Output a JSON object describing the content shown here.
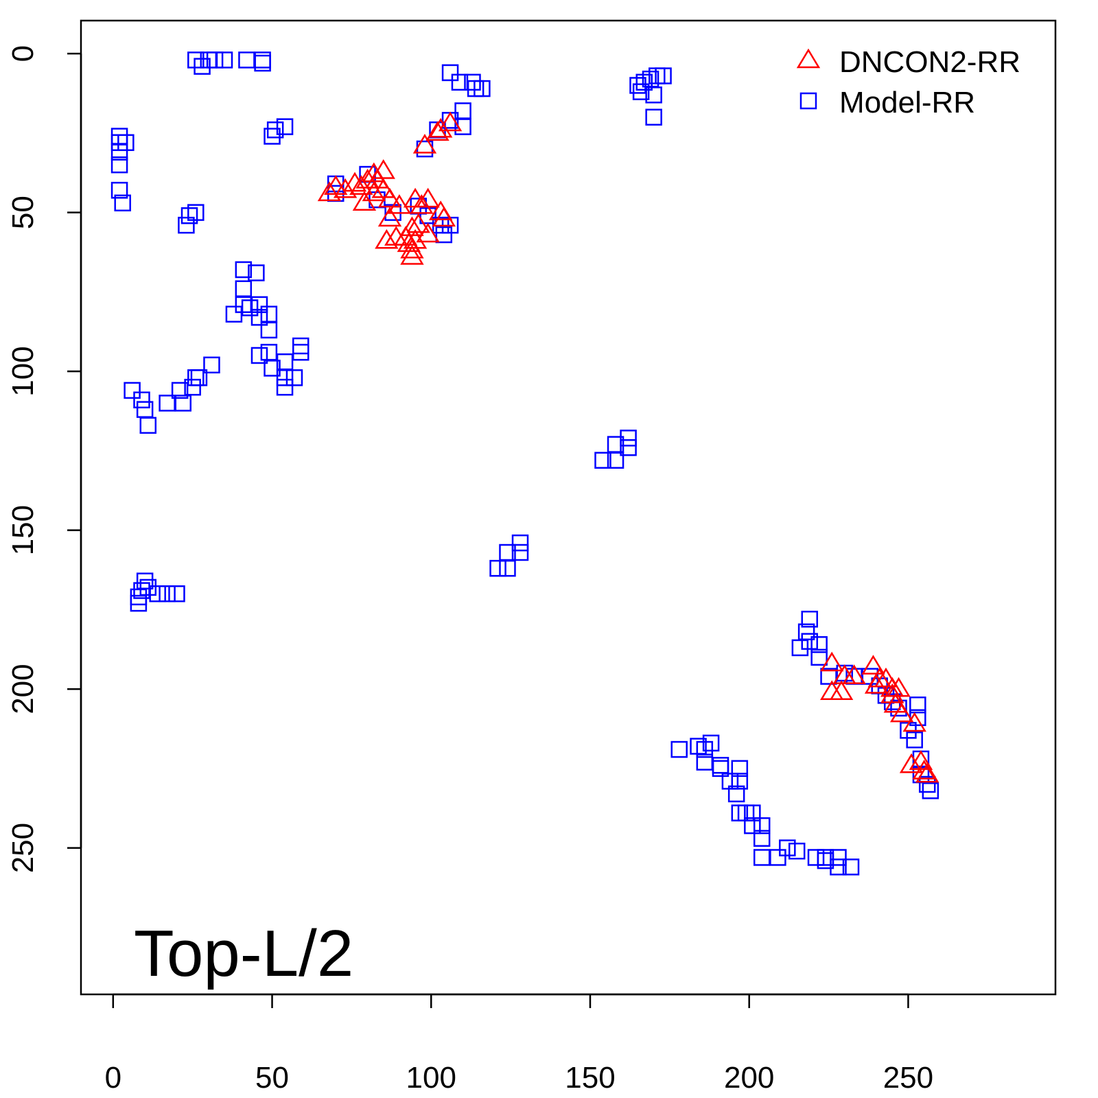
{
  "chart_data": {
    "type": "scatter",
    "title": "",
    "xlabel": "",
    "ylabel": "",
    "xlim": [
      -10.1,
      296.3
    ],
    "ylim": [
      -10.4,
      296.1
    ],
    "y_inverted": true,
    "grid": false,
    "xticks": [
      0,
      50,
      100,
      150,
      200,
      250
    ],
    "yticks": [
      0,
      50,
      100,
      150,
      200,
      250
    ],
    "xtick_labels": [
      "0",
      "50",
      "100",
      "150",
      "200",
      "250"
    ],
    "ytick_labels": [
      "0",
      "50",
      "100",
      "150",
      "200",
      "250"
    ],
    "annotation": "Top-L/2",
    "legend_position": "top-right",
    "legend": [
      "DNCON2-RR",
      "Model-RR"
    ],
    "series": [
      {
        "name": "DNCON2-RR",
        "marker": "triangle",
        "color": "#ff0000",
        "points": [
          [
            98,
            29
          ],
          [
            102,
            25
          ],
          [
            103,
            24
          ],
          [
            106,
            22
          ],
          [
            68,
            44
          ],
          [
            70,
            42
          ],
          [
            73,
            43
          ],
          [
            76,
            41
          ],
          [
            78,
            42
          ],
          [
            80,
            40
          ],
          [
            82,
            38
          ],
          [
            83,
            40
          ],
          [
            85,
            37
          ],
          [
            79,
            47
          ],
          [
            82,
            44
          ],
          [
            85,
            43
          ],
          [
            87,
            46
          ],
          [
            87,
            52
          ],
          [
            86,
            59
          ],
          [
            89,
            58
          ],
          [
            92,
            58
          ],
          [
            94,
            62
          ],
          [
            94,
            64
          ],
          [
            95,
            46
          ],
          [
            97,
            48
          ],
          [
            99,
            46
          ],
          [
            96,
            54
          ],
          [
            99,
            57
          ],
          [
            103,
            50
          ],
          [
            104,
            52
          ],
          [
            94,
            55
          ],
          [
            93,
            60
          ],
          [
            95,
            59
          ],
          [
            90,
            48
          ],
          [
            226,
            192
          ],
          [
            226,
            201
          ],
          [
            229,
            201
          ],
          [
            230,
            196
          ],
          [
            233,
            196
          ],
          [
            239,
            193
          ],
          [
            240,
            199
          ],
          [
            241,
            197
          ],
          [
            243,
            197
          ],
          [
            245,
            200
          ],
          [
            245,
            202
          ],
          [
            247,
            200
          ],
          [
            246,
            205
          ],
          [
            248,
            208
          ],
          [
            252,
            211
          ],
          [
            251,
            224
          ],
          [
            254,
            223
          ],
          [
            255,
            226
          ],
          [
            256,
            227
          ]
        ]
      },
      {
        "name": "Model-RR",
        "marker": "square",
        "color": "#0000ff",
        "points": [
          [
            26,
            2
          ],
          [
            28,
            4
          ],
          [
            30,
            2
          ],
          [
            32,
            2
          ],
          [
            35,
            2
          ],
          [
            42,
            2
          ],
          [
            47,
            2
          ],
          [
            47,
            3
          ],
          [
            2,
            26
          ],
          [
            4,
            28
          ],
          [
            2,
            28
          ],
          [
            2,
            31
          ],
          [
            2,
            35
          ],
          [
            2,
            43
          ],
          [
            3,
            47
          ],
          [
            50,
            26
          ],
          [
            51,
            24
          ],
          [
            54,
            23
          ],
          [
            23,
            54
          ],
          [
            26,
            50
          ],
          [
            24,
            51
          ],
          [
            106,
            6
          ],
          [
            109,
            9
          ],
          [
            113,
            9
          ],
          [
            114,
            11
          ],
          [
            116,
            11
          ],
          [
            110,
            18
          ],
          [
            110,
            23
          ],
          [
            106,
            21
          ],
          [
            102,
            24
          ],
          [
            98,
            30
          ],
          [
            165,
            10
          ],
          [
            167,
            9
          ],
          [
            169,
            8
          ],
          [
            171,
            7
          ],
          [
            173,
            7
          ],
          [
            170,
            13
          ],
          [
            170,
            20
          ],
          [
            166,
            12
          ],
          [
            41,
            68
          ],
          [
            45,
            69
          ],
          [
            41,
            74
          ],
          [
            41,
            79
          ],
          [
            38,
            82
          ],
          [
            43,
            80
          ],
          [
            46,
            79
          ],
          [
            46,
            83
          ],
          [
            49,
            82
          ],
          [
            49,
            87
          ],
          [
            46,
            95
          ],
          [
            49,
            94
          ],
          [
            50,
            99
          ],
          [
            54,
            97
          ],
          [
            54,
            102
          ],
          [
            54,
            105
          ],
          [
            57,
            102
          ],
          [
            59,
            92
          ],
          [
            59,
            94
          ],
          [
            6,
            106
          ],
          [
            9,
            109
          ],
          [
            10,
            112
          ],
          [
            11,
            117
          ],
          [
            17,
            110
          ],
          [
            21,
            106
          ],
          [
            22,
            110
          ],
          [
            25,
            105
          ],
          [
            26,
            102
          ],
          [
            27,
            102
          ],
          [
            31,
            98
          ],
          [
            8,
            173
          ],
          [
            9,
            169
          ],
          [
            10,
            166
          ],
          [
            11,
            168
          ],
          [
            14,
            170
          ],
          [
            17,
            170
          ],
          [
            20,
            170
          ],
          [
            8,
            171
          ],
          [
            154,
            128
          ],
          [
            158,
            128
          ],
          [
            158,
            123
          ],
          [
            162,
            121
          ],
          [
            162,
            124
          ],
          [
            121,
            162
          ],
          [
            124,
            162
          ],
          [
            124,
            157
          ],
          [
            128,
            157
          ],
          [
            128,
            154
          ],
          [
            219,
            178
          ],
          [
            218,
            182
          ],
          [
            216,
            187
          ],
          [
            219,
            185
          ],
          [
            222,
            186
          ],
          [
            222,
            190
          ],
          [
            225,
            196
          ],
          [
            230,
            195
          ],
          [
            233,
            196
          ],
          [
            238,
            196
          ],
          [
            241,
            199
          ],
          [
            243,
            202
          ],
          [
            245,
            204
          ],
          [
            247,
            206
          ],
          [
            250,
            213
          ],
          [
            252,
            216
          ],
          [
            253,
            205
          ],
          [
            253,
            209
          ],
          [
            254,
            222
          ],
          [
            254,
            227
          ],
          [
            256,
            230
          ],
          [
            257,
            232
          ],
          [
            178,
            219
          ],
          [
            184,
            218
          ],
          [
            186,
            219
          ],
          [
            188,
            217
          ],
          [
            186,
            223
          ],
          [
            191,
            224
          ],
          [
            191,
            225
          ],
          [
            194,
            229
          ],
          [
            197,
            225
          ],
          [
            197,
            229
          ],
          [
            196,
            233
          ],
          [
            197,
            239
          ],
          [
            199,
            239
          ],
          [
            201,
            239
          ],
          [
            201,
            243
          ],
          [
            204,
            243
          ],
          [
            204,
            247
          ],
          [
            204,
            253
          ],
          [
            209,
            253
          ],
          [
            212,
            250
          ],
          [
            215,
            251
          ],
          [
            221,
            253
          ],
          [
            224,
            253
          ],
          [
            228,
            253
          ],
          [
            228,
            256
          ],
          [
            232,
            256
          ],
          [
            224,
            254
          ],
          [
            70,
            41
          ],
          [
            70,
            44
          ],
          [
            80,
            38
          ],
          [
            83,
            46
          ],
          [
            88,
            50
          ],
          [
            96,
            48
          ],
          [
            99,
            51
          ],
          [
            103,
            54
          ],
          [
            106,
            54
          ],
          [
            104,
            57
          ]
        ]
      }
    ]
  }
}
